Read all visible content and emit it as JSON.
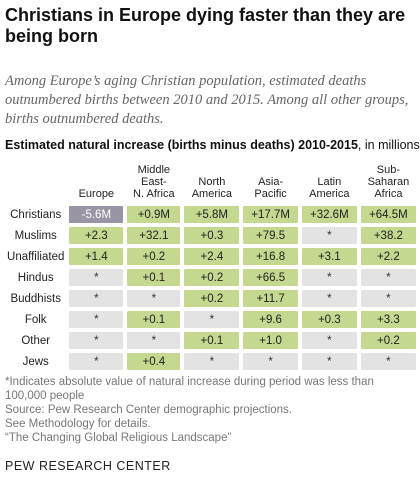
{
  "header": {
    "title": "Christians in Europe dying faster than they are being born",
    "subtitle": "Among Europe’s aging Christian population, estimated deaths outnumbered births between 2010 and 2015. Among all other groups, births outnumbered deaths."
  },
  "caption": {
    "bold": "Estimated natural increase (births minus deaths) 2010-2015",
    "rest": ", in millions"
  },
  "columns": [
    {
      "line1": "",
      "line2": "Europe"
    },
    {
      "line1": "Middle East-",
      "line2": "N. Africa"
    },
    {
      "line1": "North",
      "line2": "America"
    },
    {
      "line1": "Asia-",
      "line2": "Pacific"
    },
    {
      "line1": "Latin",
      "line2": "America"
    },
    {
      "line1": "Sub-Saharan",
      "line2": "Africa"
    }
  ],
  "chart_data": {
    "type": "table",
    "columns": [
      "Europe",
      "Middle East-N. Africa",
      "North America",
      "Asia-Pacific",
      "Latin America",
      "Sub-Saharan Africa"
    ],
    "rows": [
      {
        "group": "Christians",
        "values": [
          "-5.6M",
          "+0.9M",
          "+5.8M",
          "+17.7M",
          "+32.6M",
          "+64.5M"
        ]
      },
      {
        "group": "Muslims",
        "values": [
          "+2.3",
          "+32.1",
          "+0.3",
          "+79.5",
          "*",
          "+38.2"
        ]
      },
      {
        "group": "Unaffiliated",
        "values": [
          "+1.4",
          "+0.2",
          "+2.4",
          "+16.8",
          "+3.1",
          "+2.2"
        ]
      },
      {
        "group": "Hindus",
        "values": [
          "*",
          "+0.1",
          "+0.2",
          "+66.5",
          "*",
          "*"
        ]
      },
      {
        "group": "Buddhists",
        "values": [
          "*",
          "*",
          "+0.2",
          "+11.7",
          "*",
          "*"
        ]
      },
      {
        "group": "Folk",
        "values": [
          "*",
          "+0.1",
          "*",
          "+9.6",
          "+0.3",
          "+3.3"
        ]
      },
      {
        "group": "Other",
        "values": [
          "*",
          "*",
          "+0.1",
          "+1.0",
          "*",
          "+0.2"
        ]
      },
      {
        "group": "Jews",
        "values": [
          "*",
          "+0.4",
          "*",
          "*",
          "*",
          "*"
        ]
      }
    ]
  },
  "colors": {
    "positive": "#c5d890",
    "negligible": "#e3e3e3",
    "negative": "#9a94a4"
  },
  "footnotes": {
    "note": "*Indicates absolute value of natural increase during period was less than 100,000 people",
    "source": "Source: Pew Research Center demographic projections.",
    "methodology": "See Methodology for details.",
    "report": "“The Changing Global Religious Landscape”"
  },
  "brand": "PEW RESEARCH CENTER"
}
